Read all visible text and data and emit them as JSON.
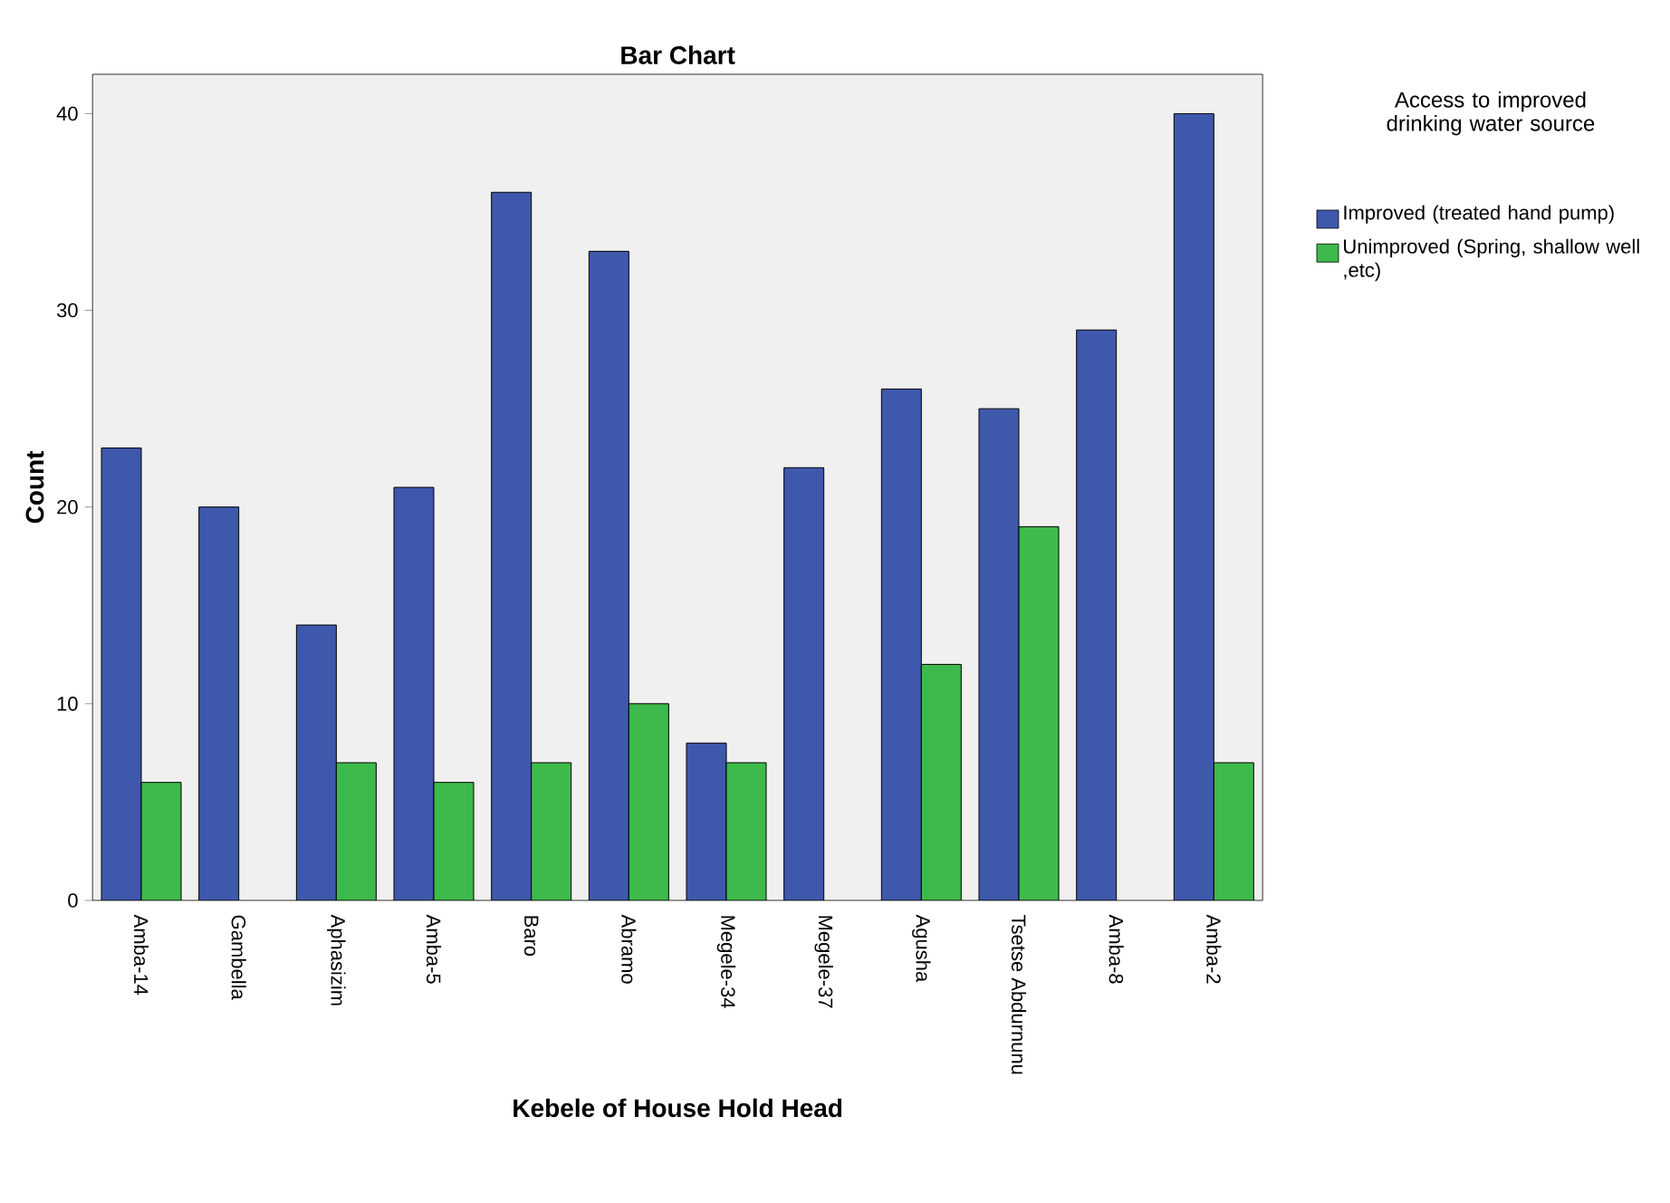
{
  "chart_data": {
    "type": "bar",
    "title": "Bar Chart",
    "xlabel": "Kebele of House Hold Head",
    "ylabel": "Count",
    "legend_title": "Access to improved drinking water source",
    "categories": [
      "Amba-14",
      "Gambella",
      "Aphasizim",
      "Amba-5",
      "Baro",
      "Abramo",
      "Megele-34",
      "Megele-37",
      "Agusha",
      "Tsetse Abdurnunu",
      "Amba-8",
      "Amba-2"
    ],
    "series": [
      {
        "name": "Improved (treated hand pump)",
        "color": "#3e58ac",
        "values": [
          23,
          20,
          14,
          21,
          36,
          33,
          8,
          22,
          26,
          25,
          29,
          40
        ]
      },
      {
        "name": "Unimproved (Spring, shallow well ,etc)",
        "color": "#3dba4b",
        "values": [
          6,
          null,
          7,
          6,
          7,
          10,
          7,
          null,
          12,
          19,
          null,
          7
        ]
      }
    ],
    "ylim": [
      0,
      42
    ],
    "yticks": [
      0,
      10,
      20,
      30,
      40
    ],
    "grid": false,
    "legend": "top right"
  }
}
